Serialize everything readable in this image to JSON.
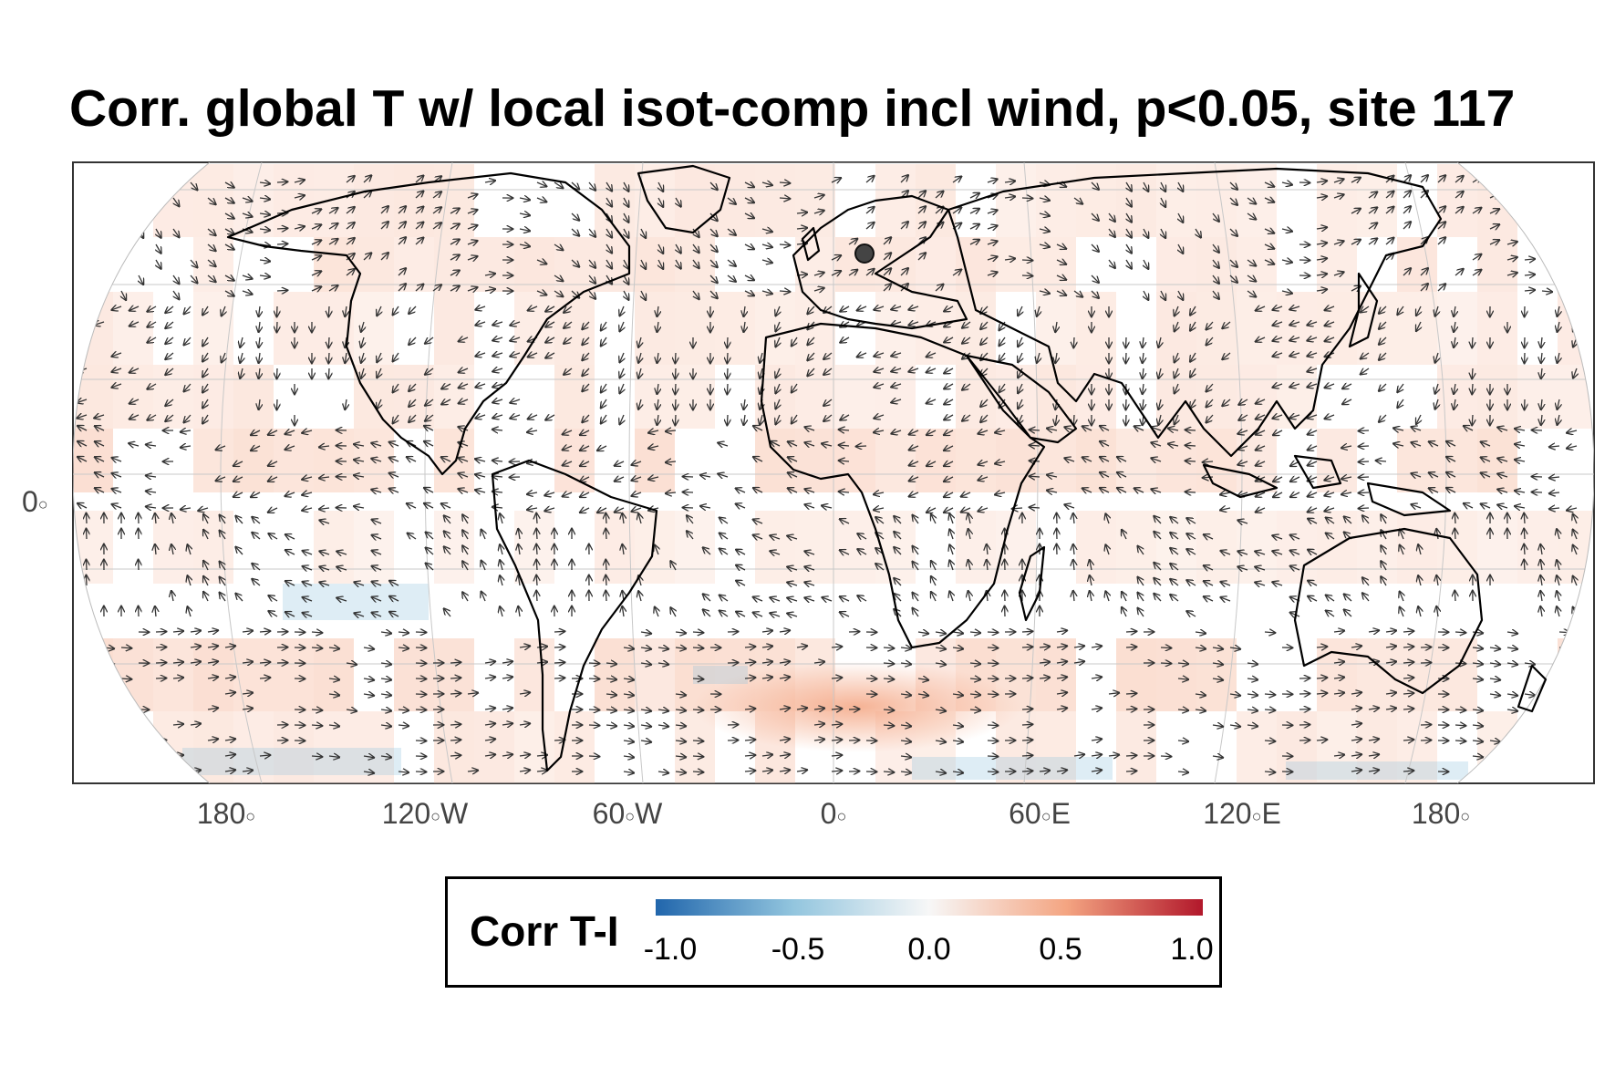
{
  "title": "Corr. global T w/ local isot-comp incl wind, p<0.05, site 117",
  "map": {
    "projection": "Robinson-like world map",
    "site_marker": {
      "label": "site 117",
      "lon": 10,
      "lat": 52
    },
    "x_axis_labels": [
      {
        "text": "180",
        "deg": "○"
      },
      {
        "text": "120",
        "deg": "○",
        "suffix": "W"
      },
      {
        "text": "60",
        "deg": "○",
        "suffix": "W"
      },
      {
        "text": "0",
        "deg": "○"
      },
      {
        "text": "60",
        "deg": "○",
        "suffix": "E"
      },
      {
        "text": "120",
        "deg": "○",
        "suffix": "E"
      },
      {
        "text": "180",
        "deg": "○"
      }
    ],
    "y_axis_labels": [
      {
        "text": "0",
        "deg": "○"
      }
    ],
    "colors": {
      "positive": "#f4a582",
      "negative": "#92c5de",
      "arrows": "#333333",
      "coast": "#000000"
    }
  },
  "legend": {
    "title": "Corr T-I",
    "ticks": [
      "-1.0",
      "-0.5",
      "0.0",
      "0.5",
      "1.0"
    ],
    "range": [
      -1.0,
      1.0
    ],
    "colors": [
      "#2166ac",
      "#92c5de",
      "#f7f7f7",
      "#f4a582",
      "#b2182b"
    ]
  }
}
